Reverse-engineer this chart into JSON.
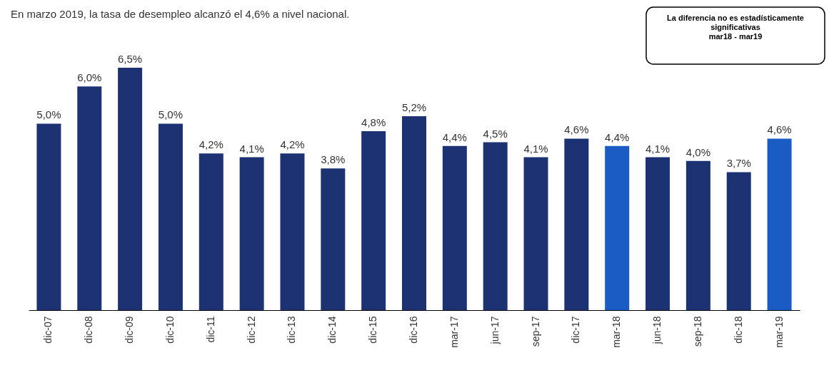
{
  "chart_data": {
    "type": "bar",
    "title": "En marzo 2019, la tasa de desempleo alcanzó el 4,6% a nivel nacional.",
    "annotations": [
      "La  diferencia no es estadísticamente\nsignificativas\nmar18 - mar19"
    ],
    "categories": [
      "dic-07",
      "dic-08",
      "dic-09",
      "dic-10",
      "dic-11",
      "dic-12",
      "dic-13",
      "dic-14",
      "dic-15",
      "dic-16",
      "mar-17",
      "jun-17",
      "sep-17",
      "dic-17",
      "mar-18",
      "jun-18",
      "sep-18",
      "dic-18",
      "mar-19"
    ],
    "values": [
      5.0,
      6.0,
      6.5,
      5.0,
      4.2,
      4.1,
      4.2,
      3.8,
      4.8,
      5.2,
      4.4,
      4.5,
      4.1,
      4.6,
      4.4,
      4.1,
      4.0,
      3.7,
      4.6
    ],
    "value_labels": [
      "5,0%",
      "6,0%",
      "6,5%",
      "5,0%",
      "4,2%",
      "4,1%",
      "4,2%",
      "3,8%",
      "4,8%",
      "5,2%",
      "4,4%",
      "4,5%",
      "4,1%",
      "4,6%",
      "4,4%",
      "4,1%",
      "4,0%",
      "3,7%",
      "4,6%"
    ],
    "colors": [
      "#1c3272",
      "#1c3272",
      "#1c3272",
      "#1c3272",
      "#1c3272",
      "#1c3272",
      "#1c3272",
      "#1c3272",
      "#1c3272",
      "#1c3272",
      "#1c3272",
      "#1c3272",
      "#1c3272",
      "#1c3272",
      "#1a5bc4",
      "#1c3272",
      "#1c3272",
      "#1c3272",
      "#1a5bc4"
    ],
    "tick_labels": "x",
    "grid": false
  }
}
